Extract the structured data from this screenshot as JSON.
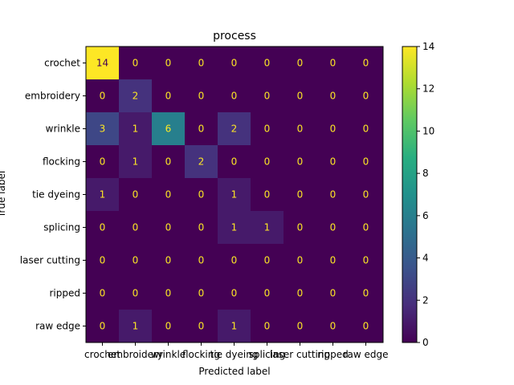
{
  "chart_data": {
    "type": "heatmap",
    "title": "process",
    "xlabel": "Predicted label",
    "ylabel": "True label",
    "labels": [
      "crochet",
      "embroidery",
      "wrinkle",
      "flocking",
      "tie dyeing",
      "splicing",
      "laser cutting",
      "ripped",
      "raw edge"
    ],
    "matrix": [
      [
        14,
        0,
        0,
        0,
        0,
        0,
        0,
        0,
        0
      ],
      [
        0,
        2,
        0,
        0,
        0,
        0,
        0,
        0,
        0
      ],
      [
        3,
        1,
        6,
        0,
        2,
        0,
        0,
        0,
        0
      ],
      [
        0,
        1,
        0,
        2,
        0,
        0,
        0,
        0,
        0
      ],
      [
        1,
        0,
        0,
        0,
        1,
        0,
        0,
        0,
        0
      ],
      [
        0,
        0,
        0,
        0,
        1,
        1,
        0,
        0,
        0
      ],
      [
        0,
        0,
        0,
        0,
        0,
        0,
        0,
        0,
        0
      ],
      [
        0,
        0,
        0,
        0,
        0,
        0,
        0,
        0,
        0
      ],
      [
        0,
        1,
        0,
        0,
        1,
        0,
        0,
        0,
        0
      ]
    ],
    "colormap": "viridis",
    "vmin": 0,
    "vmax": 14,
    "colorbar_ticks": [
      0,
      2,
      4,
      6,
      8,
      10,
      12,
      14
    ],
    "text_color_light": "#fde725",
    "text_color_dark": "#440154"
  }
}
